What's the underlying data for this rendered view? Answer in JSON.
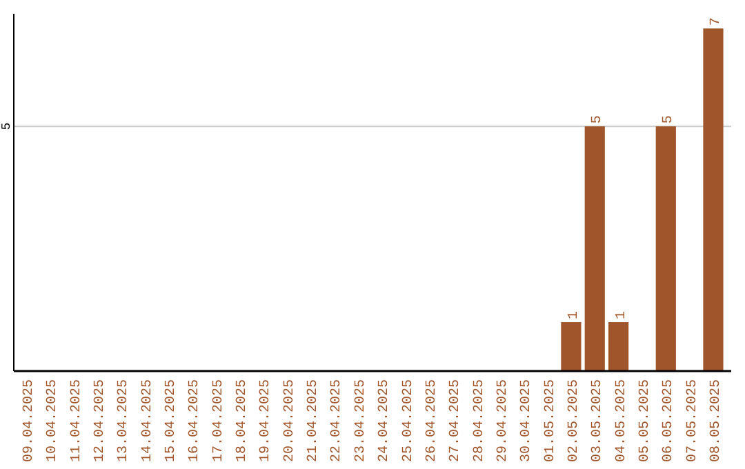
{
  "chart_data": {
    "type": "bar",
    "categories": [
      "09.04.2025",
      "10.04.2025",
      "11.04.2025",
      "12.04.2025",
      "13.04.2025",
      "14.04.2025",
      "15.04.2025",
      "16.04.2025",
      "17.04.2025",
      "18.04.2025",
      "19.04.2025",
      "20.04.2025",
      "21.04.2025",
      "22.04.2025",
      "23.04.2025",
      "24.04.2025",
      "25.04.2025",
      "26.04.2025",
      "27.04.2025",
      "28.04.2025",
      "29.04.2025",
      "30.04.2025",
      "01.05.2025",
      "02.05.2025",
      "03.05.2025",
      "04.05.2025",
      "05.05.2025",
      "06.05.2025",
      "07.05.2025",
      "08.05.2025"
    ],
    "values": [
      null,
      null,
      null,
      null,
      null,
      null,
      null,
      null,
      null,
      null,
      null,
      null,
      null,
      null,
      null,
      null,
      null,
      null,
      null,
      null,
      null,
      null,
      null,
      1,
      5,
      1,
      null,
      5,
      null,
      7
    ],
    "value_labels": [
      null,
      null,
      null,
      null,
      null,
      null,
      null,
      null,
      null,
      null,
      null,
      null,
      null,
      null,
      null,
      null,
      null,
      null,
      null,
      null,
      null,
      null,
      null,
      "1",
      "5",
      "1",
      null,
      "5",
      null,
      "7"
    ],
    "color": "#a0562a",
    "ylim": [
      0,
      7.3
    ],
    "yticks": [
      5
    ],
    "grid": "y"
  }
}
